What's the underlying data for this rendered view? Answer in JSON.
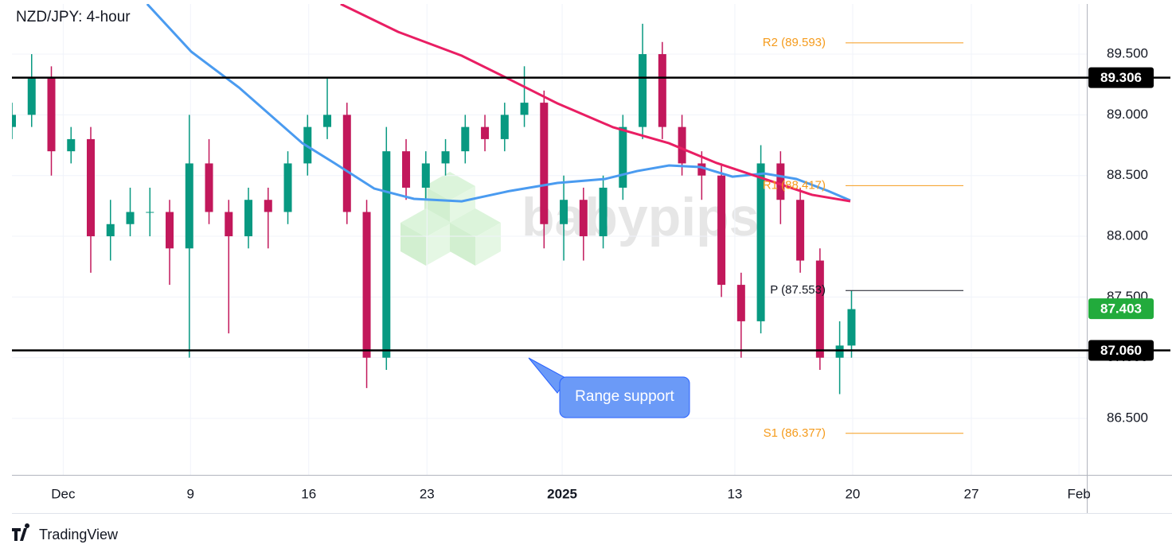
{
  "chart_data": {
    "type": "candlestick",
    "title": "NZD/JPY: 4-hour",
    "x": [
      0,
      5,
      10,
      15,
      20,
      25,
      30,
      35,
      40,
      45,
      50,
      55,
      60,
      65,
      70,
      75,
      80,
      85,
      90,
      95,
      100,
      105,
      110,
      115,
      120,
      125,
      130,
      135,
      140,
      145,
      150,
      155,
      160,
      165,
      170,
      175,
      180,
      185,
      190,
      195,
      200,
      205,
      210,
      213
    ],
    "open": [
      88.9,
      89.0,
      89.3,
      88.7,
      88.8,
      88.0,
      88.1,
      88.2,
      88.2,
      87.9,
      88.6,
      88.2,
      88.0,
      88.3,
      88.2,
      88.6,
      88.9,
      89.0,
      88.2,
      87.0,
      88.7,
      88.4,
      88.6,
      88.7,
      88.9,
      88.8,
      89.0,
      89.1,
      88.1,
      88.3,
      88.0,
      88.4,
      88.9,
      89.5,
      88.9,
      88.6,
      88.5,
      87.6,
      87.3,
      88.6,
      88.3,
      87.8,
      87.0,
      87.1
    ],
    "high": [
      89.1,
      89.5,
      89.4,
      88.9,
      88.9,
      88.3,
      88.4,
      88.4,
      88.3,
      89.0,
      88.8,
      88.3,
      88.4,
      88.4,
      88.7,
      89.0,
      89.3,
      89.1,
      88.3,
      88.9,
      88.8,
      88.7,
      88.8,
      89.0,
      89.0,
      89.1,
      89.4,
      89.2,
      88.5,
      88.4,
      88.5,
      89.0,
      89.75,
      89.6,
      89.0,
      88.7,
      88.6,
      87.7,
      88.75,
      88.7,
      88.4,
      87.9,
      87.3,
      87.55
    ],
    "low": [
      88.8,
      88.9,
      88.5,
      88.6,
      87.7,
      87.8,
      88.0,
      88.0,
      87.6,
      87.0,
      88.1,
      87.2,
      87.9,
      87.9,
      88.1,
      88.5,
      88.8,
      88.1,
      86.75,
      86.9,
      88.3,
      88.3,
      88.5,
      88.6,
      88.7,
      88.7,
      88.9,
      87.9,
      87.8,
      87.8,
      87.9,
      88.3,
      88.8,
      88.8,
      88.5,
      88.3,
      87.5,
      87.0,
      87.2,
      88.1,
      87.7,
      86.9,
      86.7,
      87.0
    ],
    "close": [
      89.0,
      89.3,
      88.7,
      88.8,
      88.0,
      88.1,
      88.2,
      88.2,
      87.9,
      88.6,
      88.2,
      88.0,
      88.3,
      88.2,
      88.6,
      88.9,
      89.0,
      88.2,
      87.0,
      88.7,
      88.4,
      88.6,
      88.7,
      88.9,
      88.8,
      89.0,
      89.1,
      88.1,
      88.3,
      88.0,
      88.4,
      88.9,
      89.5,
      88.9,
      88.6,
      88.5,
      87.6,
      87.3,
      88.6,
      88.3,
      87.8,
      87.0,
      87.1,
      87.4
    ],
    "up_color": "#089981",
    "down_color": "#c2185b",
    "moving_averages": [
      {
        "color": "#4a9bf0",
        "x": [
          34.3,
          45.5,
          57.6,
          73.7,
          81.8,
          91.9,
          102,
          114.1,
          126.3,
          138.4,
          150.5,
          158.6,
          166.7,
          174.7,
          182.8,
          190.9,
          199,
          207.1,
          212.7
        ],
        "values": [
          89.913,
          89.52,
          89.225,
          88.766,
          88.603,
          88.393,
          88.308,
          88.288,
          88.373,
          88.439,
          88.472,
          88.537,
          88.583,
          88.57,
          88.491,
          88.517,
          88.472,
          88.373,
          88.295
        ]
      },
      {
        "color": "#e91e63",
        "x": [
          83.4,
          98,
          114.1,
          126.3,
          138.4,
          152.5,
          166.7,
          178.8,
          190.9,
          203,
          212.7
        ],
        "values": [
          89.913,
          89.683,
          89.487,
          89.291,
          89.094,
          88.898,
          88.766,
          88.603,
          88.472,
          88.341,
          88.288
        ]
      }
    ],
    "xlim": [
      0,
      272.7
    ],
    "xticks": [
      {
        "value": 13,
        "label": "Dec"
      },
      {
        "value": 45.3,
        "label": "9"
      },
      {
        "value": 75.3,
        "label": "16"
      },
      {
        "value": 105.3,
        "label": "23"
      },
      {
        "value": 139.6,
        "label": "2025"
      },
      {
        "value": 183.4,
        "label": "13"
      },
      {
        "value": 213.3,
        "label": "20"
      },
      {
        "value": 243.4,
        "label": "27"
      },
      {
        "value": 270.7,
        "label": "Feb"
      }
    ],
    "ylim": [
      86.035,
      89.913
    ],
    "yticks": [
      {
        "value": 86.5,
        "label": "86.500"
      },
      {
        "value": 87.0,
        "label": "87.000"
      },
      {
        "value": 87.5,
        "label": "87.500"
      },
      {
        "value": 88.0,
        "label": "88.000"
      },
      {
        "value": 88.5,
        "label": "88.500"
      },
      {
        "value": 89.0,
        "label": "89.000"
      },
      {
        "value": 89.5,
        "label": "89.500"
      }
    ],
    "hlines": [
      {
        "value": 89.306,
        "label": "89.306"
      },
      {
        "value": 87.06,
        "label": "87.060"
      }
    ],
    "pivots": [
      {
        "value": 89.593,
        "label": "R2 (89.593)",
        "color": "#f59b1c"
      },
      {
        "value": 88.417,
        "label": "R1 (88.417)",
        "color": "#f59b1c"
      },
      {
        "value": 87.553,
        "label": "P (87.553)",
        "color": "#131722"
      },
      {
        "value": 86.377,
        "label": "S1 (86.377)",
        "color": "#f59b1c"
      }
    ],
    "current_price": {
      "value": 87.403,
      "label": "87.403",
      "color": "#22ab3c"
    },
    "annotation": "Range support",
    "watermark": "babypips"
  },
  "footer": {
    "brand": "TradingView"
  }
}
